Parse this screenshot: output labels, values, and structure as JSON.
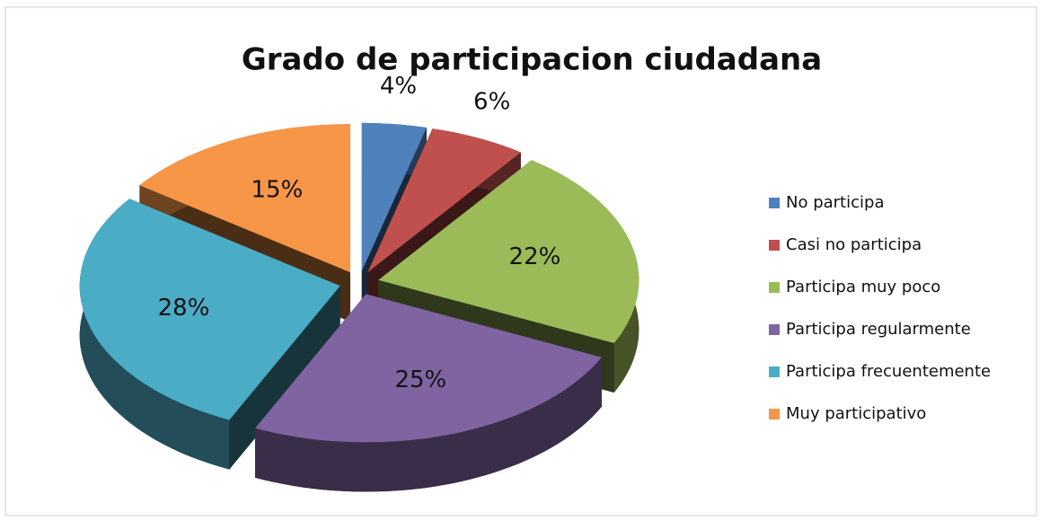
{
  "chart_data": {
    "type": "pie",
    "title": "Grado de participacion ciudadana",
    "categories": [
      "No participa",
      "Casi no participa",
      "Participa muy poco",
      "Participa regularmente",
      "Participa frecuentemente",
      "Muy participativo"
    ],
    "values": [
      4,
      6,
      22,
      25,
      28,
      15
    ],
    "value_labels": [
      "4%",
      "6%",
      "22%",
      "25%",
      "28%",
      "15%"
    ],
    "colors": [
      "#4f81bd",
      "#c0504d",
      "#9bbb59",
      "#8064a2",
      "#4bacc6",
      "#f79646"
    ],
    "legend": "right"
  }
}
